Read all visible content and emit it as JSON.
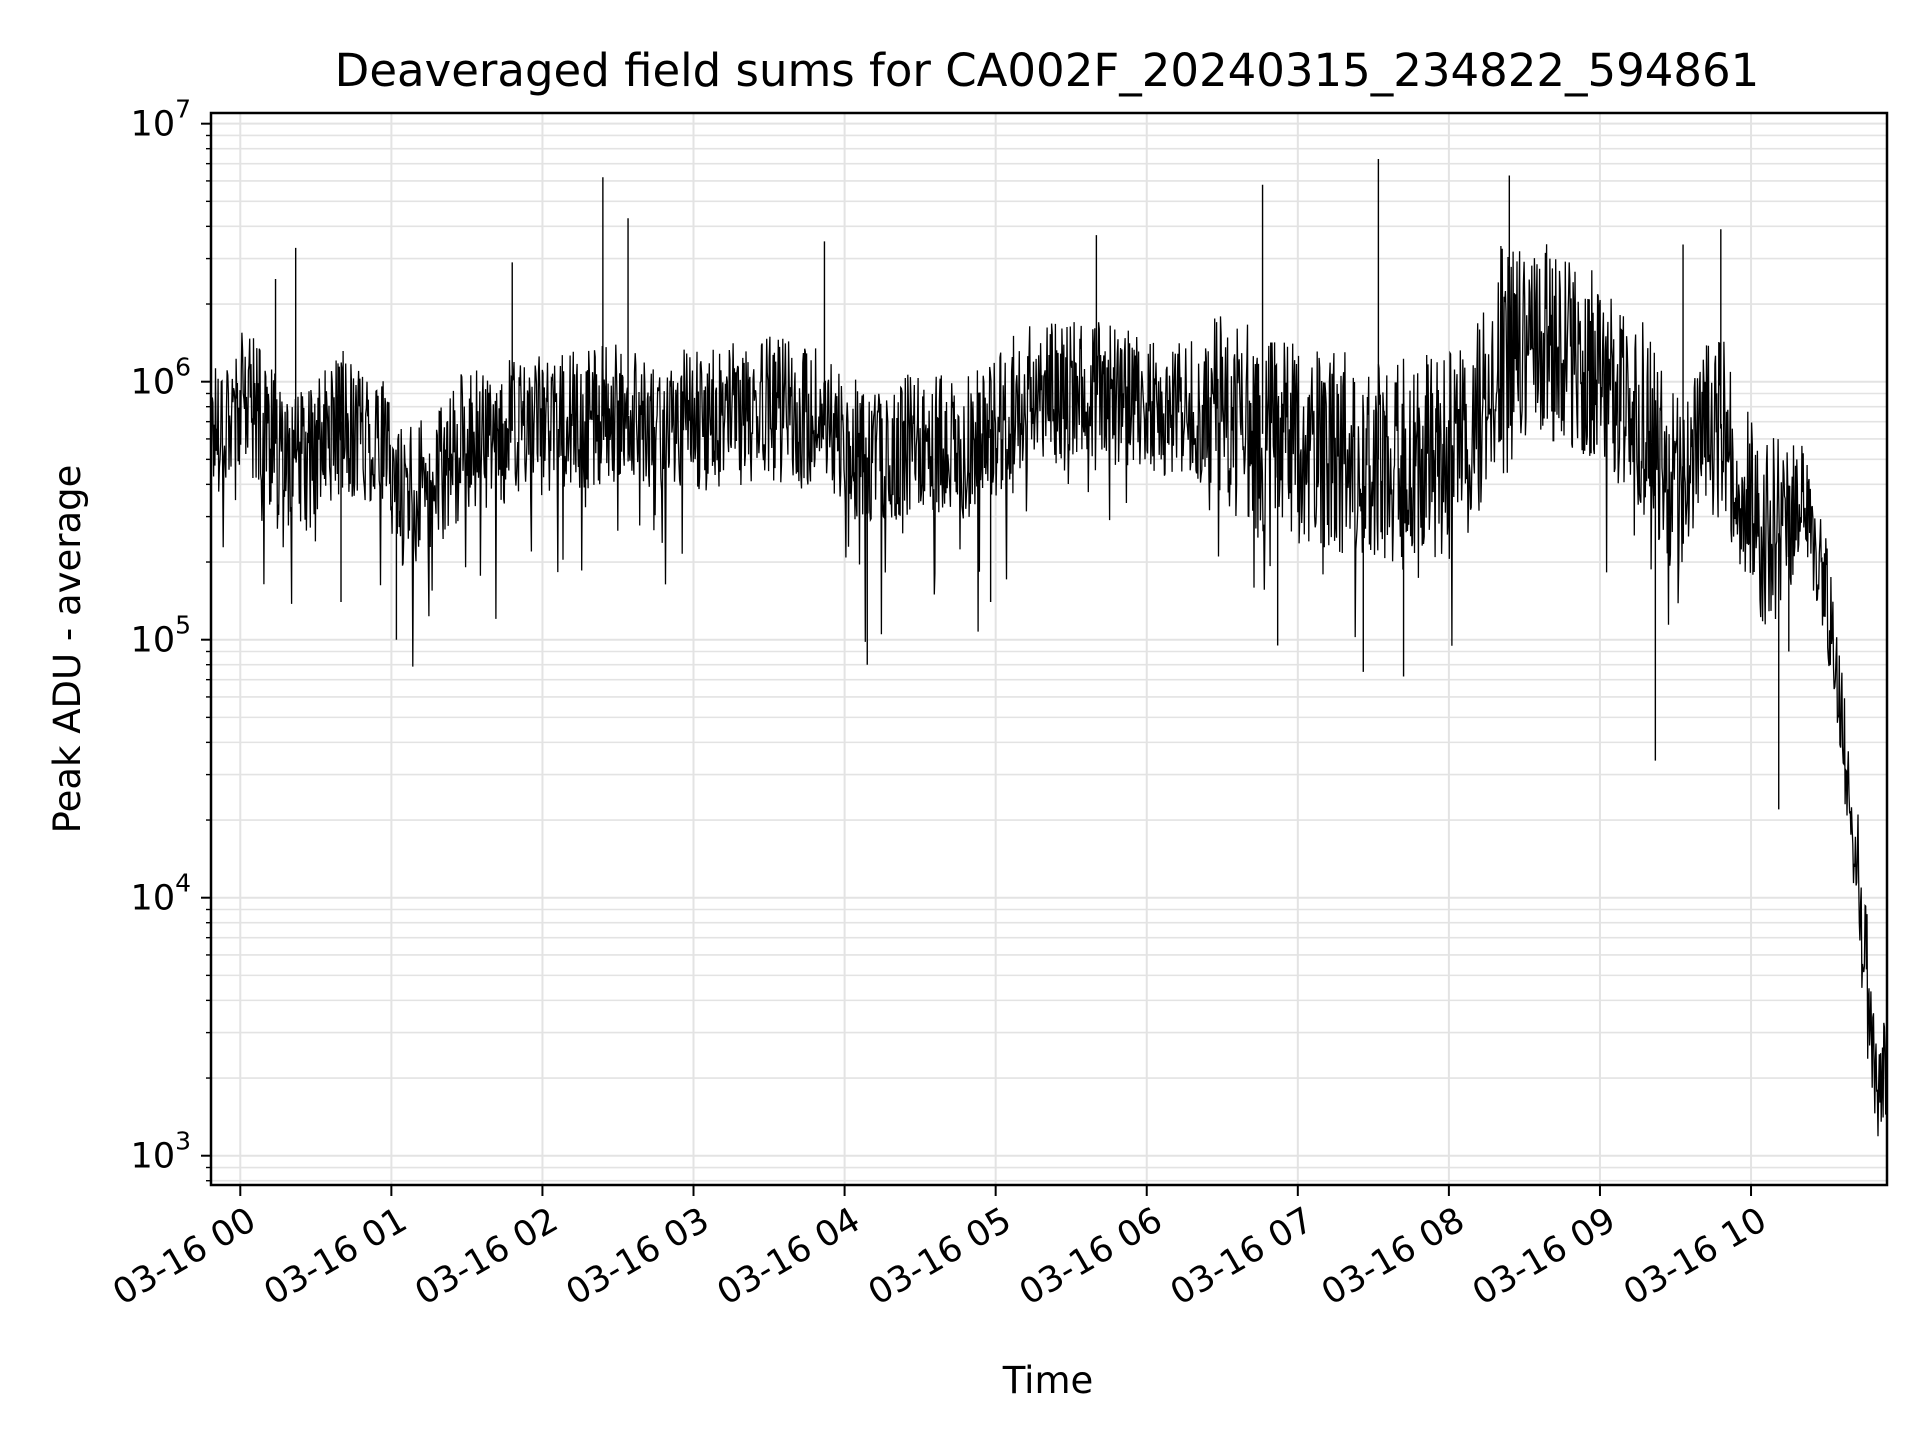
{
  "chart_data": {
    "type": "line",
    "title": "Deaveraged field sums for CA002F_20240315_234822_594861",
    "xlabel": "Time",
    "ylabel": "Peak ADU - average",
    "y_scale": "log",
    "ylim": [
      770,
      11000000
    ],
    "xlim": [
      "2024-03-15 23:48:22",
      "2024-03-16 10:54:00"
    ],
    "grid": true,
    "x_ticks": [
      "03-16 00",
      "03-16 01",
      "03-16 02",
      "03-16 03",
      "03-16 04",
      "03-16 05",
      "03-16 06",
      "03-16 07",
      "03-16 08",
      "03-16 09",
      "03-16 10"
    ],
    "y_ticks": [
      {
        "mantissa": "10",
        "exp": "3"
      },
      {
        "mantissa": "10",
        "exp": "4"
      },
      {
        "mantissa": "10",
        "exp": "5"
      },
      {
        "mantissa": "10",
        "exp": "6"
      },
      {
        "mantissa": "10",
        "exp": "7"
      }
    ],
    "series": [
      {
        "color": "#000000",
        "points": [
          [
            "2024-03-15 23:48:22",
            650000
          ],
          [
            "2024-03-15 23:55:00",
            780000
          ],
          [
            "2024-03-16 00:05:00",
            850000
          ],
          [
            "2024-03-16 00:15:00",
            550000
          ],
          [
            "2024-03-16 00:25:00",
            480000
          ],
          [
            "2024-03-16 00:40:00",
            700000
          ],
          [
            "2024-03-16 00:55:00",
            600000
          ],
          [
            "2024-03-16 01:05:00",
            350000
          ],
          [
            "2024-03-16 01:15:00",
            400000
          ],
          [
            "2024-03-16 01:30:00",
            600000
          ],
          [
            "2024-03-16 01:50:00",
            650000
          ],
          [
            "2024-03-16 02:10:00",
            700000
          ],
          [
            "2024-03-16 02:30:00",
            750000
          ],
          [
            "2024-03-16 02:50:00",
            700000
          ],
          [
            "2024-03-16 03:10:00",
            720000
          ],
          [
            "2024-03-16 03:30:00",
            800000
          ],
          [
            "2024-03-16 03:50:00",
            700000
          ],
          [
            "2024-03-16 04:10:00",
            500000
          ],
          [
            "2024-03-16 04:30:00",
            600000
          ],
          [
            "2024-03-16 04:50:00",
            550000
          ],
          [
            "2024-03-16 05:10:00",
            850000
          ],
          [
            "2024-03-16 05:30:00",
            950000
          ],
          [
            "2024-03-16 05:50:00",
            850000
          ],
          [
            "2024-03-16 06:10:00",
            800000
          ],
          [
            "2024-03-16 06:30:00",
            750000
          ],
          [
            "2024-03-16 06:50:00",
            600000
          ],
          [
            "2024-03-16 07:10:00",
            550000
          ],
          [
            "2024-03-16 07:30:00",
            500000
          ],
          [
            "2024-03-16 07:50:00",
            500000
          ],
          [
            "2024-03-16 08:10:00",
            600000
          ],
          [
            "2024-03-16 08:20:00",
            1400000
          ],
          [
            "2024-03-16 08:35:00",
            1500000
          ],
          [
            "2024-03-16 08:50:00",
            1300000
          ],
          [
            "2024-03-16 09:05:00",
            1000000
          ],
          [
            "2024-03-16 09:15:00",
            800000
          ],
          [
            "2024-03-16 09:30:00",
            400000
          ],
          [
            "2024-03-16 09:45:00",
            800000
          ],
          [
            "2024-03-16 10:00:00",
            300000
          ],
          [
            "2024-03-16 10:10:00",
            250000
          ],
          [
            "2024-03-16 10:20:00",
            350000
          ],
          [
            "2024-03-16 10:30:00",
            150000
          ],
          [
            "2024-03-16 10:35:00",
            60000
          ],
          [
            "2024-03-16 10:40:00",
            20000
          ],
          [
            "2024-03-16 10:45:00",
            8000
          ],
          [
            "2024-03-16 10:50:00",
            1500
          ],
          [
            "2024-03-16 10:54:00",
            2500
          ]
        ],
        "spikes": [
          [
            "2024-03-16 00:14:00",
            2500000
          ],
          [
            "2024-03-16 00:22:00",
            3300000
          ],
          [
            "2024-03-16 00:40:00",
            140000
          ],
          [
            "2024-03-16 01:02:00",
            100000
          ],
          [
            "2024-03-16 01:48:00",
            2900000
          ],
          [
            "2024-03-16 02:24:00",
            6200000
          ],
          [
            "2024-03-16 02:34:00",
            4300000
          ],
          [
            "2024-03-16 03:52:00",
            3500000
          ],
          [
            "2024-03-16 04:09:00",
            80000
          ],
          [
            "2024-03-16 04:58:00",
            140000
          ],
          [
            "2024-03-16 05:40:00",
            3700000
          ],
          [
            "2024-03-16 06:46:00",
            5800000
          ],
          [
            "2024-03-16 06:52:00",
            95000
          ],
          [
            "2024-03-16 07:26:00",
            75000
          ],
          [
            "2024-03-16 07:32:00",
            7300000
          ],
          [
            "2024-03-16 07:42:00",
            72000
          ],
          [
            "2024-03-16 08:24:00",
            6300000
          ],
          [
            "2024-03-16 09:22:00",
            34000
          ],
          [
            "2024-03-16 09:33:00",
            3400000
          ],
          [
            "2024-03-16 09:48:00",
            3900000
          ],
          [
            "2024-03-16 10:11:00",
            22000
          ],
          [
            "2024-03-16 10:15:00",
            90000
          ]
        ]
      }
    ]
  }
}
